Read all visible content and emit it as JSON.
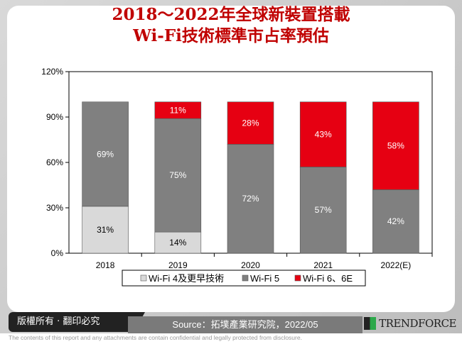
{
  "title_line1": "2018～2022年全球新裝置搭載",
  "title_line2": "Wi-Fi技術標準市占率預估",
  "chart_data": {
    "type": "bar",
    "stacked": true,
    "categories": [
      "2018",
      "2019",
      "2020",
      "2021",
      "2022(E)"
    ],
    "series": [
      {
        "name": "Wi-Fi 4及更早技術",
        "values": [
          31,
          14,
          0,
          0,
          0
        ],
        "color": "#d9d9d9"
      },
      {
        "name": "Wi-Fi 5",
        "values": [
          69,
          75,
          72,
          57,
          42
        ],
        "color": "#808080"
      },
      {
        "name": "Wi-Fi 6、6E",
        "values": [
          0,
          11,
          28,
          43,
          58
        ],
        "color": "#e60012"
      }
    ],
    "ylim": [
      0,
      120
    ],
    "yticks": [
      0,
      30,
      60,
      90,
      120
    ],
    "ytick_labels": [
      "0%",
      "30%",
      "60%",
      "90%",
      "120%"
    ],
    "legend_position": "bottom",
    "grid": false
  },
  "legend": [
    "Wi-Fi 4及更早技術",
    "Wi-Fi 5",
    "Wi-Fi 6、6E"
  ],
  "footer": {
    "copyright": "版權所有 · 翻印必究",
    "source": "Source：拓墣產業研究院，2022/05",
    "logo": "TRENDFORCE",
    "disclaimer": "The contents of this report and any attachments are contain confidential and legally protected from disclosure."
  }
}
